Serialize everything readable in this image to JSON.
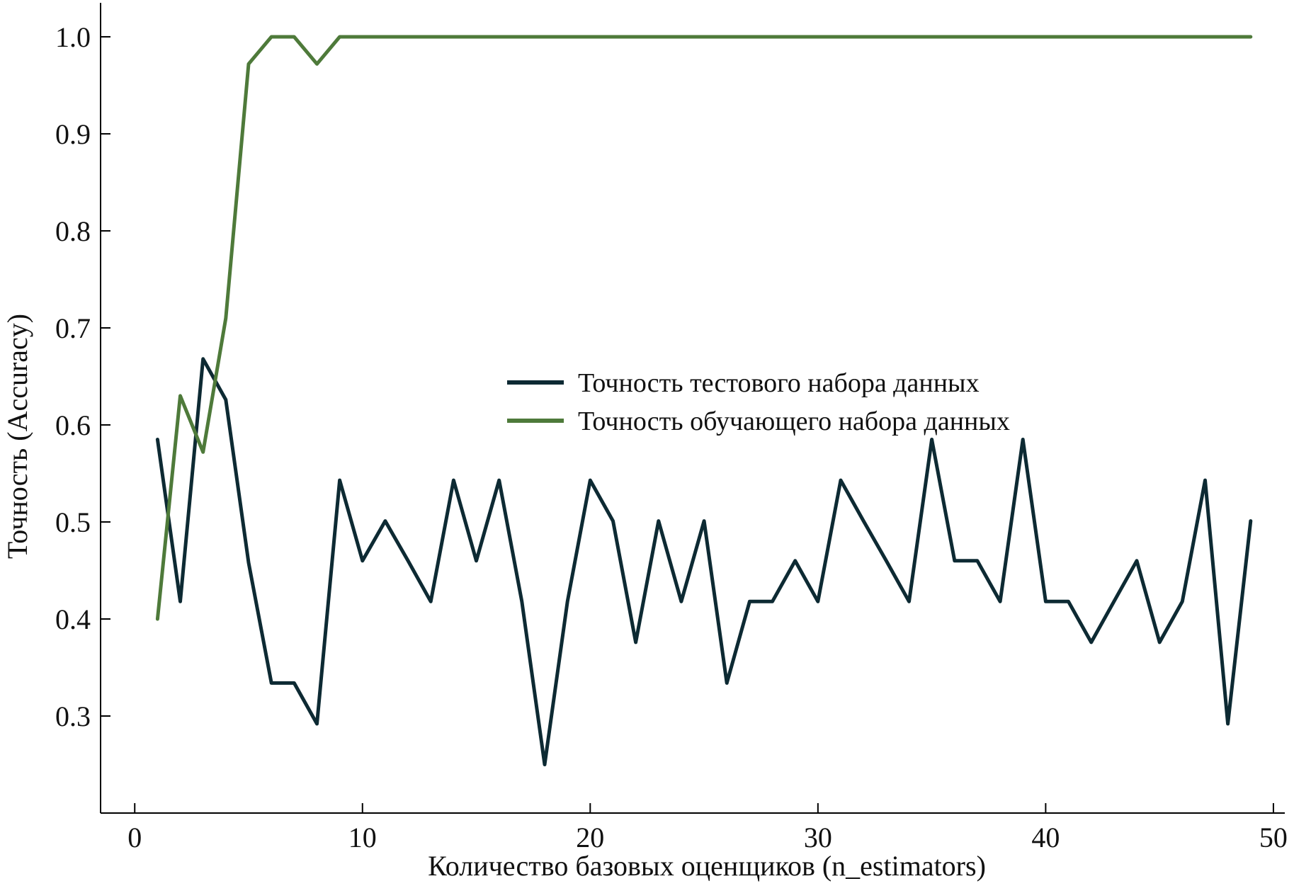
{
  "chart_data": {
    "type": "line",
    "xlabel": "Количество базовых оценщиков (n_estimators)",
    "ylabel": "Точность (Accuracy)",
    "xlim": [
      -1.5,
      50.5
    ],
    "ylim": [
      0.2,
      1.035
    ],
    "xticks": [
      0,
      10,
      20,
      30,
      40,
      50
    ],
    "xtick_labels": [
      "0",
      "10",
      "20",
      "30",
      "40",
      "50"
    ],
    "yticks": [
      0.3,
      0.4,
      0.5,
      0.6,
      0.7,
      0.8,
      0.9,
      1.0
    ],
    "ytick_labels": [
      "0.3",
      "0.4",
      "0.5",
      "0.6",
      "0.7",
      "0.8",
      "0.9",
      "1.0"
    ],
    "grid": false,
    "legend_position": "center-right",
    "x": [
      1,
      2,
      3,
      4,
      5,
      6,
      7,
      8,
      9,
      10,
      11,
      12,
      13,
      14,
      15,
      16,
      17,
      18,
      19,
      20,
      21,
      22,
      23,
      24,
      25,
      26,
      27,
      28,
      29,
      30,
      31,
      32,
      33,
      34,
      35,
      36,
      37,
      38,
      39,
      40,
      41,
      42,
      43,
      44,
      45,
      46,
      47,
      48,
      49
    ],
    "series": [
      {
        "name": "Точность тестового набора данных",
        "color": "#0d2a33",
        "values": [
          0.585,
          0.418,
          0.668,
          0.626,
          0.458,
          0.334,
          0.334,
          0.292,
          0.543,
          0.46,
          0.501,
          0.46,
          0.418,
          0.543,
          0.46,
          0.543,
          0.418,
          0.25,
          0.418,
          0.543,
          0.501,
          0.376,
          0.501,
          0.418,
          0.501,
          0.334,
          0.418,
          0.418,
          0.46,
          0.418,
          0.543,
          0.501,
          0.46,
          0.418,
          0.585,
          0.46,
          0.46,
          0.418,
          0.585,
          0.418,
          0.418,
          0.376,
          0.418,
          0.46,
          0.376,
          0.418,
          0.543,
          0.292,
          0.501
        ]
      },
      {
        "name": "Точность обучающего набора данных",
        "color": "#4e7a3a",
        "values": [
          0.4,
          0.63,
          0.572,
          0.71,
          0.972,
          1.0,
          1.0,
          0.972,
          1.0,
          1.0,
          1.0,
          1.0,
          1.0,
          1.0,
          1.0,
          1.0,
          1.0,
          1.0,
          1.0,
          1.0,
          1.0,
          1.0,
          1.0,
          1.0,
          1.0,
          1.0,
          1.0,
          1.0,
          1.0,
          1.0,
          1.0,
          1.0,
          1.0,
          1.0,
          1.0,
          1.0,
          1.0,
          1.0,
          1.0,
          1.0,
          1.0,
          1.0,
          1.0,
          1.0,
          1.0,
          1.0,
          1.0,
          1.0,
          1.0
        ]
      }
    ]
  }
}
